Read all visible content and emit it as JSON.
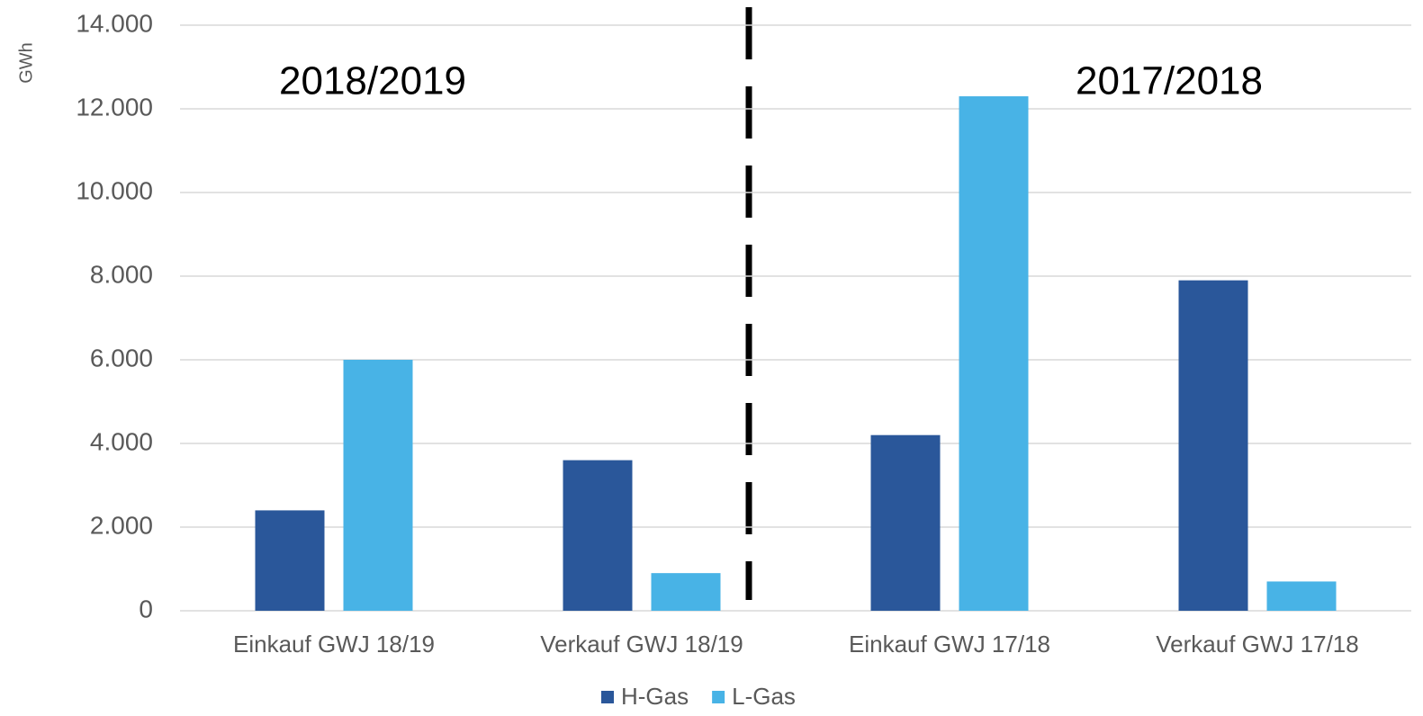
{
  "chart_data": {
    "type": "bar",
    "y_label": "GWh",
    "annotations": [
      "2018/2019",
      "2017/2018"
    ],
    "categories": [
      "Einkauf GWJ 18/19",
      "Verkauf GWJ 18/19",
      "Einkauf GWJ 17/18",
      "Verkauf GWJ 17/18"
    ],
    "series": [
      {
        "name": "H-Gas",
        "color": "#2a579a",
        "values": [
          2400,
          3600,
          4200,
          7900
        ]
      },
      {
        "name": "L-Gas",
        "color": "#48b3e6",
        "values": [
          6000,
          900,
          12300,
          700
        ]
      }
    ],
    "ylim": [
      0,
      14000
    ],
    "yticks": [
      0,
      {
        "value": 2000,
        "label": "2.000"
      },
      {
        "value": 4000,
        "label": "4.000"
      },
      {
        "value": 6000,
        "label": "6.000"
      },
      {
        "value": 8000,
        "label": "8.000"
      },
      {
        "value": 10000,
        "label": "10.000"
      },
      {
        "value": 12000,
        "label": "12.000"
      },
      {
        "value": 14000,
        "label": "14.000"
      }
    ],
    "grid": true,
    "legend": "bottom"
  }
}
